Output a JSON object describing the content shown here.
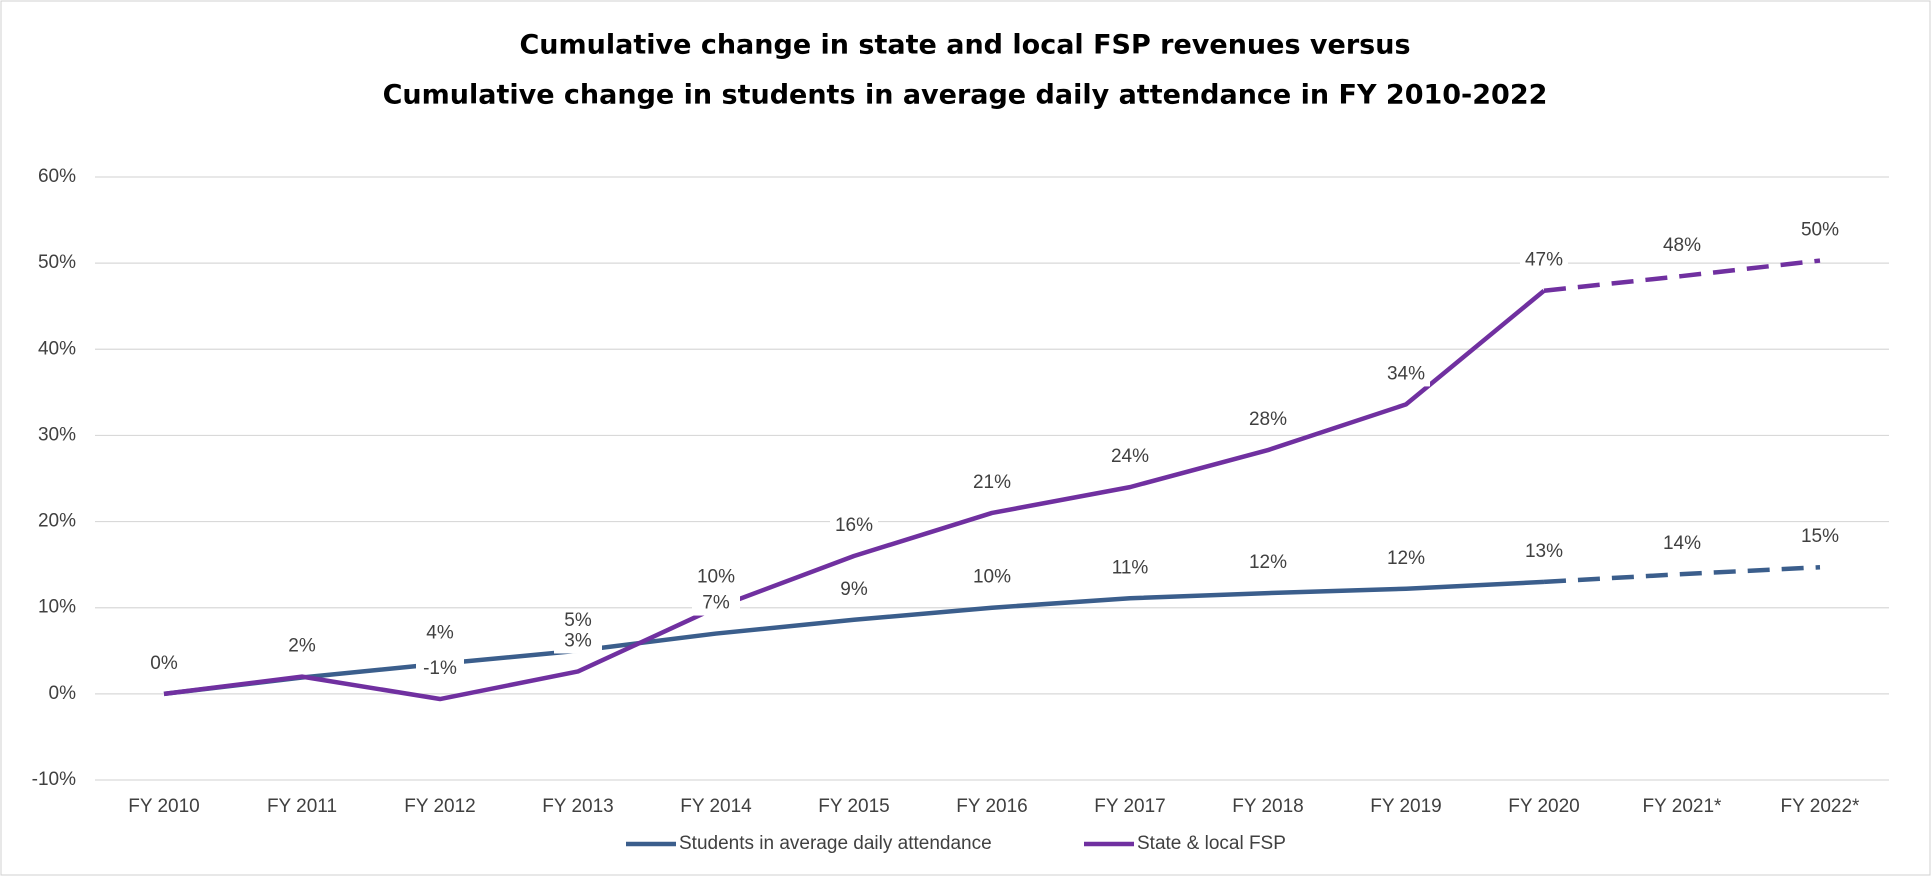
{
  "chart_data": {
    "type": "line",
    "title": [
      "Cumulative change in state and local FSP revenues versus",
      "Cumulative change in students in average daily attendance in FY 2010-2022"
    ],
    "categories": [
      "FY 2010",
      "FY 2011",
      "FY 2012",
      "FY 2013",
      "FY 2014",
      "FY 2015",
      "FY 2016",
      "FY 2017",
      "FY 2018",
      "FY 2019",
      "FY 2020",
      "FY 2021*",
      "FY 2022*"
    ],
    "series": [
      {
        "name": "Students in average daily attendance",
        "color": "#3b5e8c",
        "values": [
          0,
          1.9,
          3.5,
          5,
          7,
          8.6,
          10,
          11.1,
          11.7,
          12.2,
          13,
          13.9,
          14.7
        ],
        "value_labels": [
          "0%",
          "2%",
          "4%",
          "5%",
          "7%",
          "9%",
          "10%",
          "11%",
          "12%",
          "12%",
          "13%",
          "14%",
          "15%"
        ]
      },
      {
        "name": "State & local FSP",
        "color": "#7030a0",
        "values": [
          0,
          2,
          -0.6,
          2.6,
          10,
          16,
          21,
          24,
          28.3,
          33.6,
          46.8,
          48.5,
          50.3
        ],
        "value_labels": [
          "",
          "2%",
          "-1%",
          "3%",
          "10%",
          "16%",
          "21%",
          "24%",
          "28%",
          "34%",
          "47%",
          "48%",
          "50%"
        ]
      }
    ],
    "dashed_from": "FY 2020",
    "ylim": [
      -10,
      60
    ],
    "yticks": [
      {
        "value": -10,
        "label": "-10%"
      },
      {
        "value": 0,
        "label": "0%"
      },
      {
        "value": 10,
        "label": "10%"
      },
      {
        "value": 20,
        "label": "20%"
      },
      {
        "value": 30,
        "label": "30%"
      },
      {
        "value": 40,
        "label": "40%"
      },
      {
        "value": 50,
        "label": "50%"
      },
      {
        "value": 60,
        "label": "60%"
      }
    ],
    "grid": true,
    "legend": "bottom"
  }
}
